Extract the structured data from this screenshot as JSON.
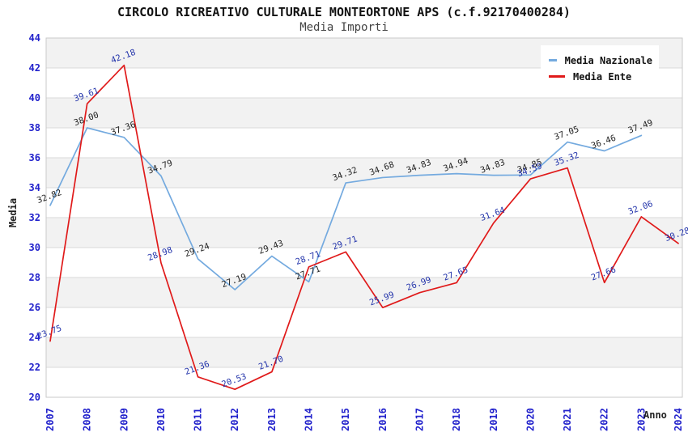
{
  "title": "CIRCOLO RICREATIVO CULTURALE MONTEORTONE APS (c.f.92170400284)",
  "subtitle": "Media Importi",
  "legend": {
    "items": [
      {
        "label": "Media Nazionale",
        "color": "#74aadf"
      },
      {
        "label": "Media Ente",
        "color": "#e01a1a"
      }
    ]
  },
  "axes": {
    "y_ticks": [
      44,
      42,
      40,
      38,
      36,
      34,
      32,
      30,
      28,
      26,
      24,
      22,
      20
    ],
    "x_ticks": [
      "2007",
      "2008",
      "2009",
      "2010",
      "2011",
      "2012",
      "2013",
      "2014",
      "2015",
      "2016",
      "2017",
      "2018",
      "2019",
      "2020",
      "2021",
      "2022",
      "2023",
      "2024"
    ]
  },
  "colors": {
    "band_gray": "#f2f2f2",
    "gridline": "#d9d9d9",
    "plot_border": "#c9c9c9",
    "tick_label_blue": "#2222cc",
    "nazionale_line": "#74aadf",
    "ente_line": "#e01a1a",
    "nazionale_point_label": "#222222",
    "ente_point_label": "#2233aa"
  },
  "chart_data": {
    "type": "line",
    "title": "CIRCOLO RICREATIVO CULTURALE MONTEORTONE APS (c.f.92170400284)",
    "subtitle": "Media Importi",
    "xlabel": "Anno",
    "ylabel": "Media",
    "ylim": [
      20,
      44
    ],
    "ytick_step": 2,
    "grid": true,
    "legend_position": "top-right",
    "x": [
      2007,
      2008,
      2009,
      2010,
      2011,
      2012,
      2013,
      2014,
      2015,
      2016,
      2017,
      2018,
      2019,
      2020,
      2021,
      2022,
      2023,
      2024
    ],
    "series": [
      {
        "name": "Media Nazionale",
        "color": "#74aadf",
        "label_color": "#222222",
        "values": [
          32.82,
          38.0,
          37.36,
          34.79,
          29.24,
          27.19,
          29.43,
          27.71,
          34.32,
          34.68,
          34.83,
          34.94,
          34.83,
          34.85,
          37.05,
          36.46,
          37.49,
          null
        ],
        "point_labels": [
          "32.82",
          "38.00",
          "37.36",
          "34.79",
          "29.24",
          "27.19",
          "29.43",
          "27.71",
          "34.32",
          "34.68",
          "34.83",
          "34.94",
          "34.83",
          "34.85",
          "37.05",
          "36.46",
          "37.49",
          ""
        ]
      },
      {
        "name": "Media Ente",
        "color": "#e01a1a",
        "label_color": "#2233aa",
        "values": [
          23.75,
          39.61,
          42.18,
          28.98,
          21.36,
          20.53,
          21.7,
          28.71,
          29.71,
          25.99,
          26.99,
          27.65,
          31.64,
          34.59,
          35.32,
          27.66,
          32.06,
          30.28
        ],
        "point_labels": [
          "23.75",
          "39.61",
          "42.18",
          "28.98",
          "21.36",
          "20.53",
          "21.70",
          "28.71",
          "29.71",
          "25.99",
          "26.99",
          "27.65",
          "31.64",
          "34.59",
          "35.32",
          "27.66",
          "32.06",
          "30.28"
        ]
      }
    ]
  }
}
